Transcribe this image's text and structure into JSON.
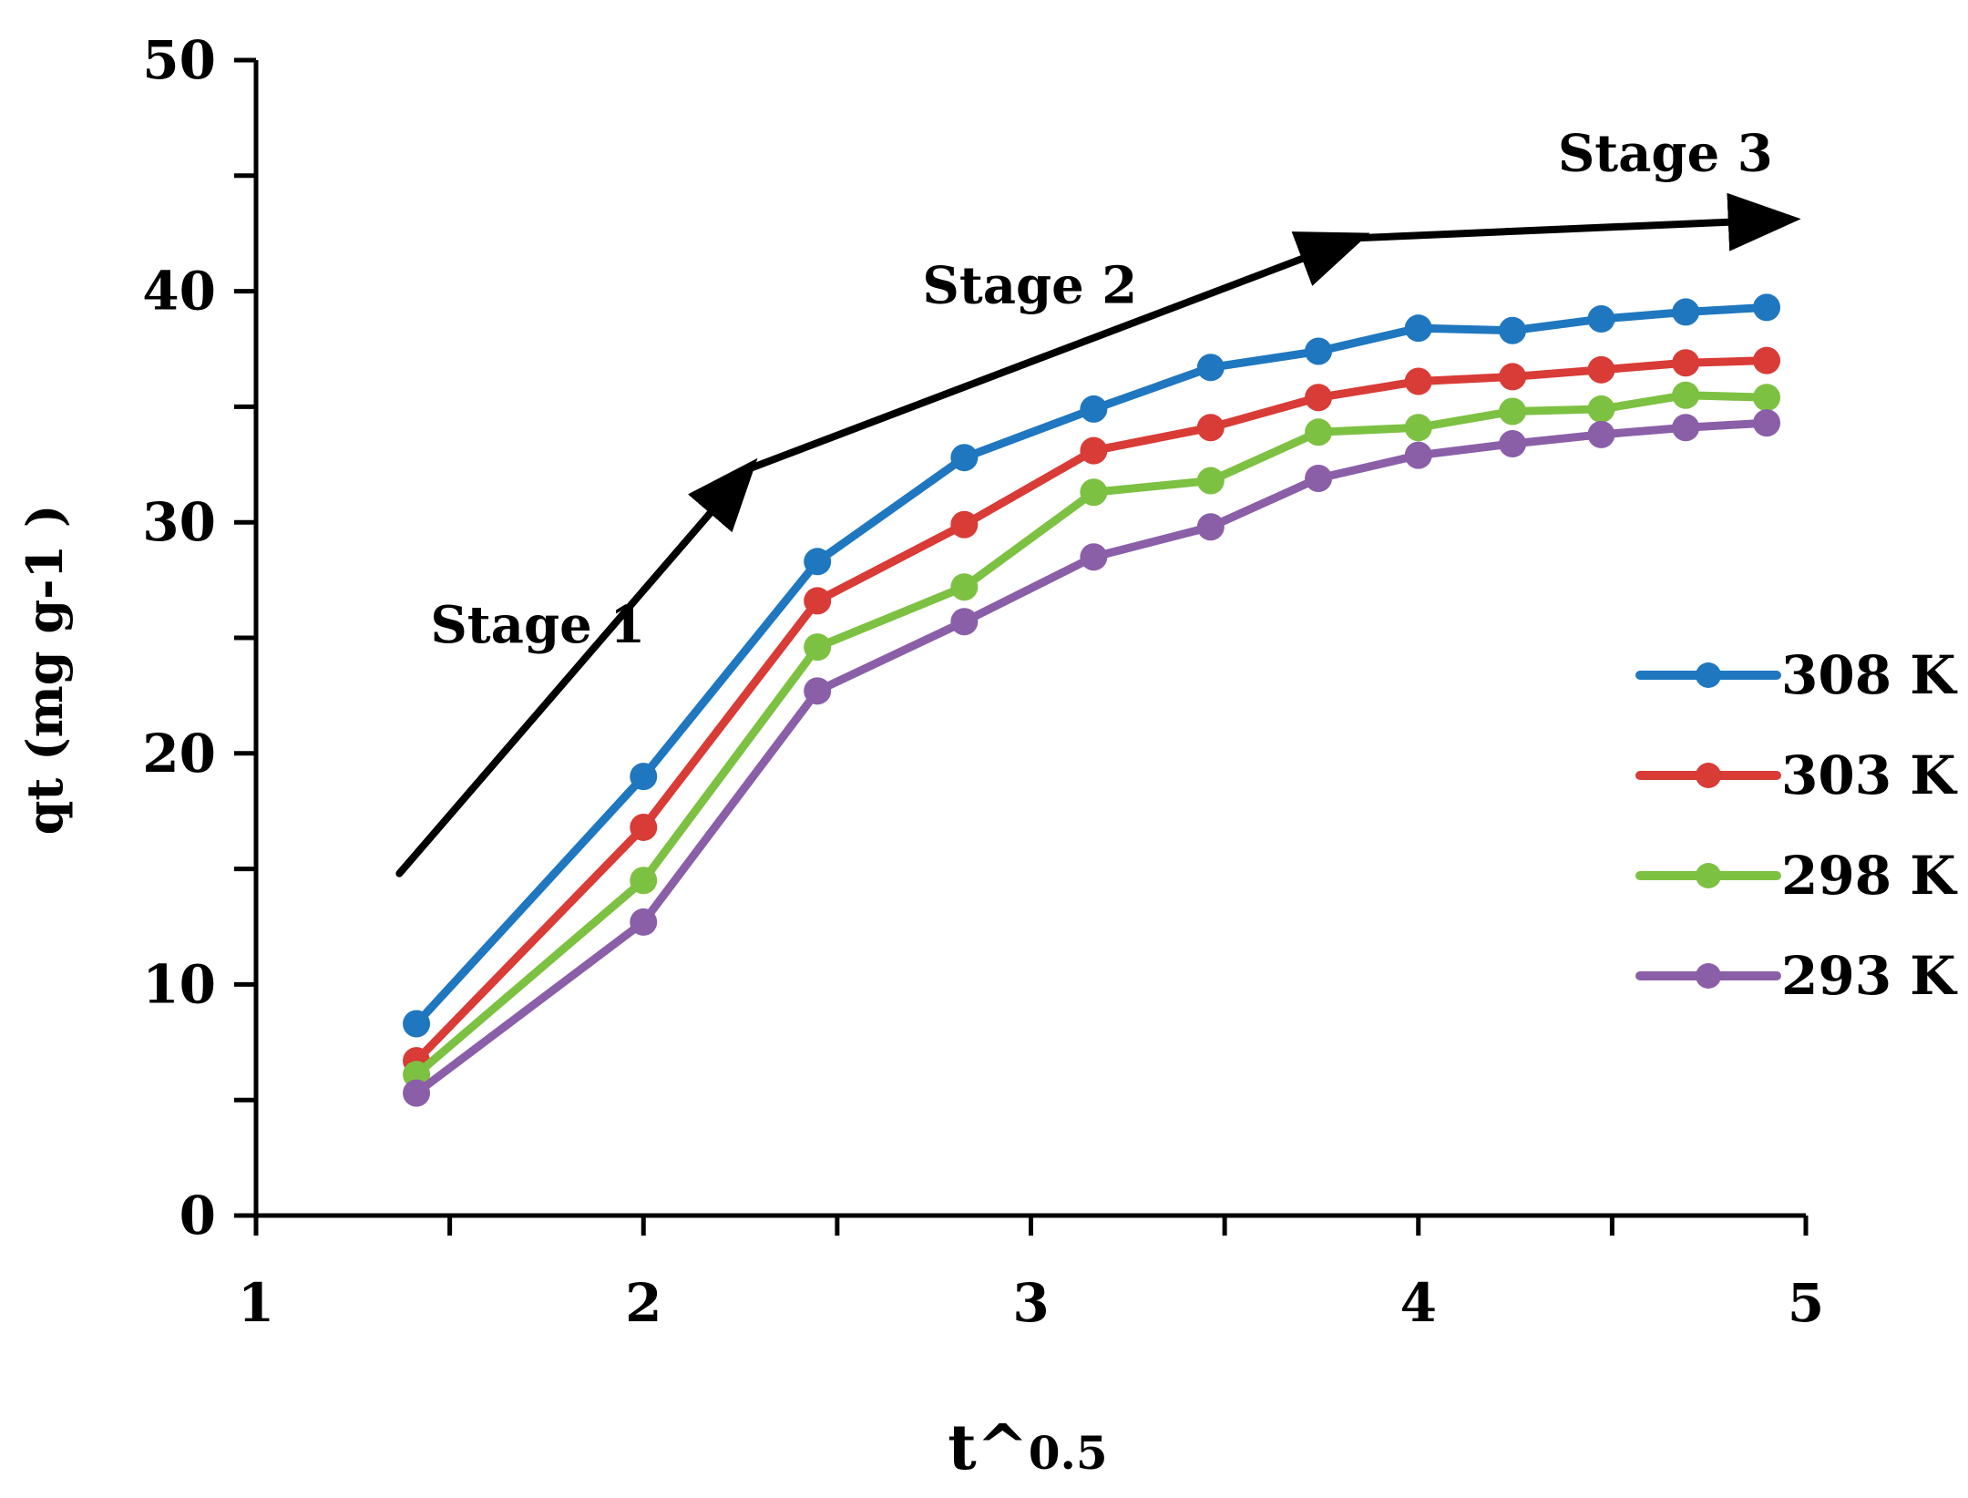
{
  "chart_data": {
    "type": "line",
    "title": "",
    "xlabel": "t^0.5",
    "xlabel_main": "t^",
    "xlabel_sub": "0.5",
    "ylabel": "qt (mg g-1 )",
    "xlim": [
      1,
      5
    ],
    "ylim": [
      0,
      50
    ],
    "x_ticks": [
      "1",
      "2",
      "3",
      "4",
      "5"
    ],
    "y_ticks": [
      "0",
      "10",
      "20",
      "30",
      "40",
      "50"
    ],
    "x": [
      1.414,
      2.0,
      2.449,
      2.828,
      3.162,
      3.464,
      3.742,
      4.0,
      4.243,
      4.472,
      4.69,
      4.899
    ],
    "series": [
      {
        "name": "308 K",
        "color": "#1f77c0",
        "values": [
          8.3,
          19.0,
          28.3,
          32.8,
          34.9,
          36.7,
          37.4,
          38.4,
          38.3,
          38.8,
          39.1,
          39.3
        ]
      },
      {
        "name": "303 K",
        "color": "#d93b36",
        "values": [
          6.7,
          16.8,
          26.6,
          29.9,
          33.1,
          34.1,
          35.4,
          36.1,
          36.3,
          36.6,
          36.9,
          37.0
        ]
      },
      {
        "name": "298 K",
        "color": "#7dc142",
        "values": [
          6.1,
          14.5,
          24.6,
          27.2,
          31.3,
          31.8,
          33.9,
          34.1,
          34.8,
          34.9,
          35.5,
          35.4
        ]
      },
      {
        "name": "293 K",
        "color": "#8a5fa8",
        "values": [
          5.3,
          12.7,
          22.7,
          25.7,
          28.5,
          29.8,
          31.9,
          32.9,
          33.4,
          33.8,
          34.1,
          34.3
        ]
      }
    ],
    "stage_arrow": {
      "color": "#000000",
      "points": [
        [
          1.37,
          14.8
        ],
        [
          2.27,
          32.3
        ],
        [
          3.84,
          42.3
        ],
        [
          4.95,
          43.1
        ]
      ]
    },
    "annotations": [
      {
        "text": "Stage 1",
        "x": 1.45,
        "y": 24.8
      },
      {
        "text": "Stage 2",
        "x": 2.72,
        "y": 39.5
      },
      {
        "text": "Stage 3",
        "x": 4.36,
        "y": 45.2
      }
    ],
    "legend_position": "right"
  }
}
